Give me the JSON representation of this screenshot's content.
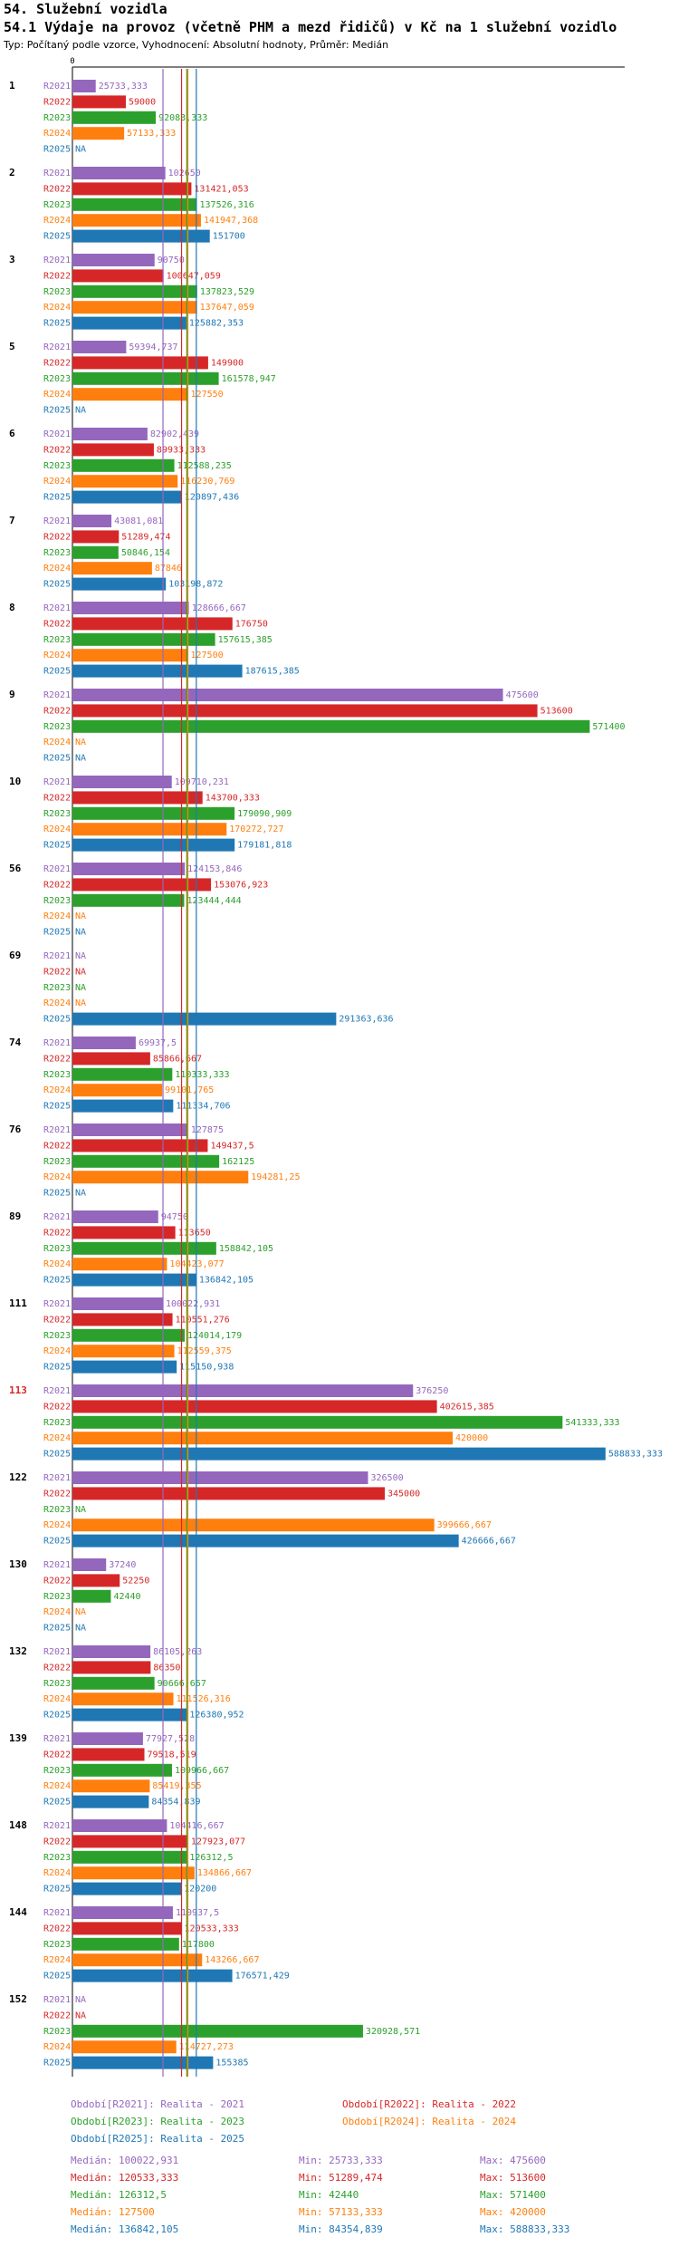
{
  "header": {
    "section": "54. Služební vozidla",
    "title": "54.1 Výdaje na provoz (včetně PHM a mezd řidičů) v Kč na 1 služební vozidlo",
    "subtitle": "Typ: Počítaný podle vzorce, Vyhodnocení: Absolutní hodnoty, Průměr: Medián"
  },
  "colors": {
    "R2021": "#9467bd",
    "R2022": "#d62728",
    "R2023": "#2ca02c",
    "R2024": "#ff7f0e",
    "R2025": "#1f77b4",
    "highlight": "#d62728",
    "axis": "#000000"
  },
  "chart_data": {
    "type": "bar",
    "orientation": "horizontal",
    "axis_zero_label": "0",
    "xlim": [
      0,
      600000
    ],
    "na_label": "NA",
    "series_names": [
      "R2021",
      "R2022",
      "R2023",
      "R2024",
      "R2025"
    ],
    "medians": [
      100022.931,
      120533.333,
      126312.5,
      127500,
      136842.105
    ],
    "highlight_group": "113",
    "groups": [
      {
        "label": "1",
        "values": [
          "25733,333",
          "59000",
          "92083,333",
          "57133,333",
          null
        ]
      },
      {
        "label": "2",
        "values": [
          "102650",
          "131421,053",
          "137526,316",
          "141947,368",
          "151700"
        ]
      },
      {
        "label": "3",
        "values": [
          "90750",
          "100647,059",
          "137823,529",
          "137647,059",
          "125882,353"
        ]
      },
      {
        "label": "5",
        "values": [
          "59394,737",
          "149900",
          "161578,947",
          "127550",
          null
        ]
      },
      {
        "label": "6",
        "values": [
          "82902,439",
          "89933,333",
          "112588,235",
          "116230,769",
          "120897,436"
        ]
      },
      {
        "label": "7",
        "values": [
          "43081,081",
          "51289,474",
          "50846,154",
          "87846",
          "103198,872"
        ]
      },
      {
        "label": "8",
        "values": [
          "128666,667",
          "176750",
          "157615,385",
          "127500",
          "187615,385"
        ]
      },
      {
        "label": "9",
        "values": [
          "475600",
          "513600",
          "571400",
          null,
          null
        ]
      },
      {
        "label": "10",
        "values": [
          "109710,231",
          "143700,333",
          "179090,909",
          "170272,727",
          "179181,818"
        ]
      },
      {
        "label": "56",
        "values": [
          "124153,846",
          "153076,923",
          "123444,444",
          null,
          null
        ]
      },
      {
        "label": "69",
        "values": [
          null,
          null,
          null,
          null,
          "291363,636"
        ]
      },
      {
        "label": "74",
        "values": [
          "69937,5",
          "85866,667",
          "110333,333",
          "99101,765",
          "111334,706"
        ]
      },
      {
        "label": "76",
        "values": [
          "127875",
          "149437,5",
          "162125",
          "194281,25",
          null
        ]
      },
      {
        "label": "89",
        "values": [
          "94750",
          "113650",
          "158842,105",
          "104423,077",
          "136842,105"
        ]
      },
      {
        "label": "111",
        "values": [
          "100022,931",
          "110551,276",
          "124014,179",
          "112559,375",
          "115150,938"
        ]
      },
      {
        "label": "113",
        "values": [
          "376250",
          "402615,385",
          "541333,333",
          "420000",
          "588833,333"
        ]
      },
      {
        "label": "122",
        "values": [
          "326500",
          "345000",
          null,
          "399666,667",
          "426666,667"
        ]
      },
      {
        "label": "130",
        "values": [
          "37240",
          "52250",
          "42440",
          null,
          null
        ]
      },
      {
        "label": "132",
        "values": [
          "86105,263",
          "86350",
          "90666,667",
          "111526,316",
          "126380,952"
        ]
      },
      {
        "label": "139",
        "values": [
          "77927,528",
          "79518,519",
          "109966,667",
          "85419,355",
          "84354,839"
        ]
      },
      {
        "label": "148",
        "values": [
          "104416,667",
          "127923,077",
          "126312,5",
          "134866,667",
          "120200"
        ]
      },
      {
        "label": "144",
        "values": [
          "110937,5",
          "120533,333",
          "117800",
          "143266,667",
          "176571,429"
        ]
      },
      {
        "label": "152",
        "values": [
          null,
          null,
          "320928,571",
          "114727,273",
          "155385"
        ]
      }
    ]
  },
  "legend": {
    "periods": [
      "Období[R2021]: Realita - 2021",
      "Období[R2022]: Realita - 2022",
      "Období[R2023]: Realita - 2023",
      "Období[R2024]: Realita - 2024",
      "Období[R2025]: Realita - 2025"
    ],
    "stats": [
      {
        "median": "Medián: 100022,931",
        "min": "Min: 25733,333",
        "max": "Max: 475600"
      },
      {
        "median": "Medián: 120533,333",
        "min": "Min: 51289,474",
        "max": "Max: 513600"
      },
      {
        "median": "Medián: 126312,5",
        "min": "Min: 42440",
        "max": "Max: 571400"
      },
      {
        "median": "Medián: 127500",
        "min": "Min: 57133,333",
        "max": "Max: 420000"
      },
      {
        "median": "Medián: 136842,105",
        "min": "Min: 84354,839",
        "max": "Max: 588833,333"
      }
    ]
  }
}
